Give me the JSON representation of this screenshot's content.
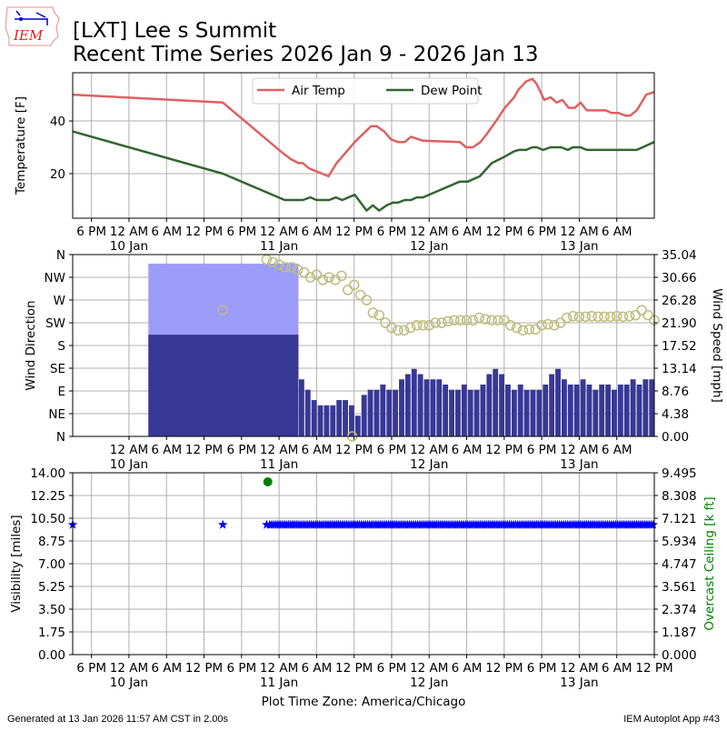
{
  "logo": {
    "text": "IEM"
  },
  "title": {
    "line1": "[LXT] Lee s Summit",
    "line2": "Recent Time Series 2026 Jan 9 - 2026 Jan 13"
  },
  "footer": {
    "generated": "Generated at 13 Jan 2026 11:57 AM CST in 2.00s",
    "app": "IEM Autoplot App #43"
  },
  "colors": {
    "air_temp": "#e06060",
    "dew_point": "#336633",
    "wind_speed": "#383896",
    "wind_gust": "#9c9cfa",
    "wind_dir": "#bdbd7e",
    "visibility": "#0000ff",
    "ceiling": "#008000"
  },
  "chart_data": [
    {
      "type": "line",
      "panel": "temperature",
      "x_unit": "hours since 2026-01-09 00:00 America/Chicago",
      "xlim": [
        15,
        108
      ],
      "ylabel": "Temperature [F]",
      "ylim": [
        3.1,
        58.3
      ],
      "yticks": [
        20,
        40
      ],
      "grid": true,
      "legend": {
        "placement": "top-center",
        "entries": [
          "Air Temp",
          "Dew Point"
        ]
      },
      "xticks": [
        {
          "h": 18,
          "label": "6 PM",
          "date": ""
        },
        {
          "h": 24,
          "label": "12 AM",
          "date": "10 Jan"
        },
        {
          "h": 30,
          "label": "6 AM",
          "date": ""
        },
        {
          "h": 36,
          "label": "12 PM",
          "date": ""
        },
        {
          "h": 42,
          "label": "6 PM",
          "date": ""
        },
        {
          "h": 48,
          "label": "12 AM",
          "date": "11 Jan"
        },
        {
          "h": 54,
          "label": "6 AM",
          "date": ""
        },
        {
          "h": 60,
          "label": "12 PM",
          "date": ""
        },
        {
          "h": 66,
          "label": "6 PM",
          "date": ""
        },
        {
          "h": 72,
          "label": "12 AM",
          "date": "12 Jan"
        },
        {
          "h": 78,
          "label": "6 AM",
          "date": ""
        },
        {
          "h": 84,
          "label": "12 PM",
          "date": ""
        },
        {
          "h": 90,
          "label": "6 PM",
          "date": ""
        },
        {
          "h": 96,
          "label": "12 AM",
          "date": "13 Jan"
        },
        {
          "h": 102,
          "label": "6 AM",
          "date": ""
        }
      ],
      "series": [
        {
          "name": "Air Temp",
          "points": [
            [
              15,
              50
            ],
            [
              39,
              47
            ],
            [
              48.5,
              28
            ],
            [
              49.9,
              25.5
            ],
            [
              51.1,
              24
            ],
            [
              51.8,
              24
            ],
            [
              52.8,
              22
            ],
            [
              55.9,
              19
            ],
            [
              57.2,
              24
            ],
            [
              60.1,
              32
            ],
            [
              62.7,
              38
            ],
            [
              63.6,
              38
            ],
            [
              64.8,
              36
            ],
            [
              65.9,
              33
            ],
            [
              67,
              32
            ],
            [
              68.1,
              32
            ],
            [
              69.1,
              34
            ],
            [
              71,
              32.5
            ],
            [
              76.9,
              32
            ],
            [
              77.9,
              30
            ],
            [
              79,
              30
            ],
            [
              80.2,
              32
            ],
            [
              81.2,
              35
            ],
            [
              82.7,
              40
            ],
            [
              84.1,
              45
            ],
            [
              85.6,
              49
            ],
            [
              86.3,
              52
            ],
            [
              87.5,
              55
            ],
            [
              88.5,
              56
            ],
            [
              89.2,
              54
            ],
            [
              90.4,
              48
            ],
            [
              91.4,
              49
            ],
            [
              92.4,
              47
            ],
            [
              93.3,
              48
            ],
            [
              94.3,
              45
            ],
            [
              95.3,
              45
            ],
            [
              96.2,
              47
            ],
            [
              97.2,
              44
            ],
            [
              100.2,
              44
            ],
            [
              101.2,
              43
            ],
            [
              102.3,
              43
            ],
            [
              103.4,
              42
            ],
            [
              104.1,
              42
            ],
            [
              105.2,
              44
            ],
            [
              106.7,
              50
            ],
            [
              108,
              51
            ]
          ]
        },
        {
          "name": "Dew Point",
          "points": [
            [
              15,
              36
            ],
            [
              39,
              20
            ],
            [
              48.9,
              10
            ],
            [
              51.8,
              10
            ],
            [
              53,
              11
            ],
            [
              54,
              10
            ],
            [
              56,
              10
            ],
            [
              57.1,
              11
            ],
            [
              58.1,
              10
            ],
            [
              60.1,
              12
            ],
            [
              62,
              6
            ],
            [
              63,
              8
            ],
            [
              64,
              6
            ],
            [
              65.2,
              8
            ],
            [
              66.2,
              9
            ],
            [
              67,
              9
            ],
            [
              68.1,
              10
            ],
            [
              69.1,
              10
            ],
            [
              70,
              11
            ],
            [
              71,
              11
            ],
            [
              76.9,
              17
            ],
            [
              78.2,
              17
            ],
            [
              80.1,
              19
            ],
            [
              82,
              24
            ],
            [
              84.1,
              26.5
            ],
            [
              85.6,
              28.5
            ],
            [
              86.3,
              29
            ],
            [
              87.5,
              29
            ],
            [
              88.5,
              30
            ],
            [
              89.2,
              30
            ],
            [
              90.2,
              29
            ],
            [
              91.4,
              30
            ],
            [
              93.1,
              30
            ],
            [
              94.2,
              29
            ],
            [
              95,
              30
            ],
            [
              96.2,
              30
            ],
            [
              97.2,
              29
            ],
            [
              105.2,
              29
            ],
            [
              108,
              32
            ]
          ]
        }
      ]
    },
    {
      "type": "bar+scatter",
      "panel": "wind",
      "x_unit": "hours since 2026-01-09 00:00 America/Chicago",
      "xlim": [
        15,
        108
      ],
      "ylabel": "Wind Direction",
      "ylabel_right": "Wind Speed [mph]",
      "ylim": [
        0,
        360
      ],
      "ylim_right": [
        0,
        35.04
      ],
      "yticks": [
        {
          "v": 0,
          "label": "N"
        },
        {
          "v": 45,
          "label": "NE"
        },
        {
          "v": 90,
          "label": "E"
        },
        {
          "v": 135,
          "label": "SE"
        },
        {
          "v": 180,
          "label": "S"
        },
        {
          "v": 225,
          "label": "SW"
        },
        {
          "v": 270,
          "label": "W"
        },
        {
          "v": 315,
          "label": "NW"
        },
        {
          "v": 360,
          "label": "N"
        }
      ],
      "yticks_right": [
        "0.00",
        "4.38",
        "8.76",
        "13.14",
        "17.52",
        "21.90",
        "26.28",
        "30.66",
        "35.04"
      ],
      "xticks": [
        {
          "h": 24,
          "label": "12 AM",
          "date": "10 Jan"
        },
        {
          "h": 30,
          "label": "6 AM",
          "date": ""
        },
        {
          "h": 36,
          "label": "12 PM",
          "date": ""
        },
        {
          "h": 42,
          "label": "6 PM",
          "date": ""
        },
        {
          "h": 48,
          "label": "12 AM",
          "date": "11 Jan"
        },
        {
          "h": 54,
          "label": "6 AM",
          "date": ""
        },
        {
          "h": 60,
          "label": "12 PM",
          "date": ""
        },
        {
          "h": 66,
          "label": "6 PM",
          "date": ""
        },
        {
          "h": 72,
          "label": "12 AM",
          "date": "12 Jan"
        },
        {
          "h": 78,
          "label": "6 AM",
          "date": ""
        },
        {
          "h": 84,
          "label": "12 PM",
          "date": ""
        },
        {
          "h": 90,
          "label": "6 PM",
          "date": ""
        },
        {
          "h": 96,
          "label": "12 AM",
          "date": "13 Jan"
        },
        {
          "h": 102,
          "label": "6 AM",
          "date": ""
        }
      ],
      "long_gap_bar": {
        "start_h": 27.1,
        "end_h": 51.1,
        "speed": 19.6,
        "gust": 33.3
      },
      "wind_speed": {
        "start_h": 51.1,
        "step_h": 1,
        "values": [
          11,
          9,
          7,
          6,
          6,
          6,
          7,
          7,
          6,
          4,
          8,
          9,
          9,
          10,
          9,
          9,
          11,
          12,
          13,
          12,
          11,
          11,
          11,
          10,
          9,
          9,
          10,
          9,
          9,
          10,
          12,
          13,
          12,
          10,
          9,
          10,
          9,
          9,
          9,
          10,
          12,
          13,
          11,
          10,
          10,
          11,
          10,
          9,
          10,
          10,
          9,
          10,
          10,
          11,
          10,
          11,
          11
        ]
      },
      "wind_dir": {
        "points": [
          [
            39,
            250
          ],
          [
            59.7,
            0
          ]
        ],
        "start_h": 46,
        "step_h": 1,
        "values": [
          350,
          345,
          340,
          335,
          335,
          330,
          325,
          315,
          320,
          310,
          315,
          310,
          318,
          290,
          300,
          280,
          270,
          245,
          240,
          225,
          215,
          210,
          210,
          215,
          220,
          220,
          220,
          225,
          225,
          228,
          230,
          230,
          230,
          230,
          235,
          232,
          230,
          230,
          230,
          220,
          215,
          210,
          212,
          212,
          220,
          222,
          220,
          225,
          235,
          238,
          237,
          237,
          238,
          237,
          237,
          237,
          238,
          237,
          238,
          240,
          250,
          240,
          230
        ]
      }
    },
    {
      "type": "scatter",
      "panel": "visibility",
      "x_unit": "hours since 2026-01-09 00:00 America/Chicago",
      "xlim": [
        15,
        108
      ],
      "xlabel": "Plot Time Zone: America/Chicago",
      "ylabel": "Visibility [miles]",
      "ylabel_right": "Overcast Ceiling [k ft]",
      "ylim": [
        0,
        14
      ],
      "ylim_right": [
        0,
        9.495
      ],
      "yticks": [
        "0.00",
        "1.75",
        "3.50",
        "5.25",
        "7.00",
        "8.75",
        "10.50",
        "12.25",
        "14.00"
      ],
      "yticks_right": [
        "0.000",
        "1.187",
        "2.374",
        "3.561",
        "4.747",
        "5.934",
        "7.121",
        "8.308",
        "9.495"
      ],
      "xticks": [
        {
          "h": 18,
          "label": "6 PM",
          "date": ""
        },
        {
          "h": 24,
          "label": "12 AM",
          "date": "10 Jan"
        },
        {
          "h": 30,
          "label": "6 AM",
          "date": ""
        },
        {
          "h": 36,
          "label": "12 PM",
          "date": ""
        },
        {
          "h": 42,
          "label": "6 PM",
          "date": ""
        },
        {
          "h": 48,
          "label": "12 AM",
          "date": "11 Jan"
        },
        {
          "h": 54,
          "label": "6 AM",
          "date": ""
        },
        {
          "h": 60,
          "label": "12 PM",
          "date": ""
        },
        {
          "h": 66,
          "label": "6 PM",
          "date": ""
        },
        {
          "h": 72,
          "label": "12 AM",
          "date": "12 Jan"
        },
        {
          "h": 78,
          "label": "6 AM",
          "date": ""
        },
        {
          "h": 84,
          "label": "12 PM",
          "date": ""
        },
        {
          "h": 90,
          "label": "6 PM",
          "date": ""
        },
        {
          "h": 96,
          "label": "12 AM",
          "date": "13 Jan"
        },
        {
          "h": 102,
          "label": "6 AM",
          "date": ""
        },
        {
          "h": 108,
          "label": "12 PM",
          "date": ""
        }
      ],
      "visibility": {
        "points": [
          [
            15,
            10
          ],
          [
            39,
            10
          ],
          [
            46,
            10
          ]
        ],
        "continuous": {
          "start_h": 46.5,
          "end_h": 108,
          "step_h": 0.3333,
          "value": 10
        }
      },
      "ceiling": {
        "points": [
          [
            46.2,
            9.02
          ]
        ]
      }
    }
  ]
}
